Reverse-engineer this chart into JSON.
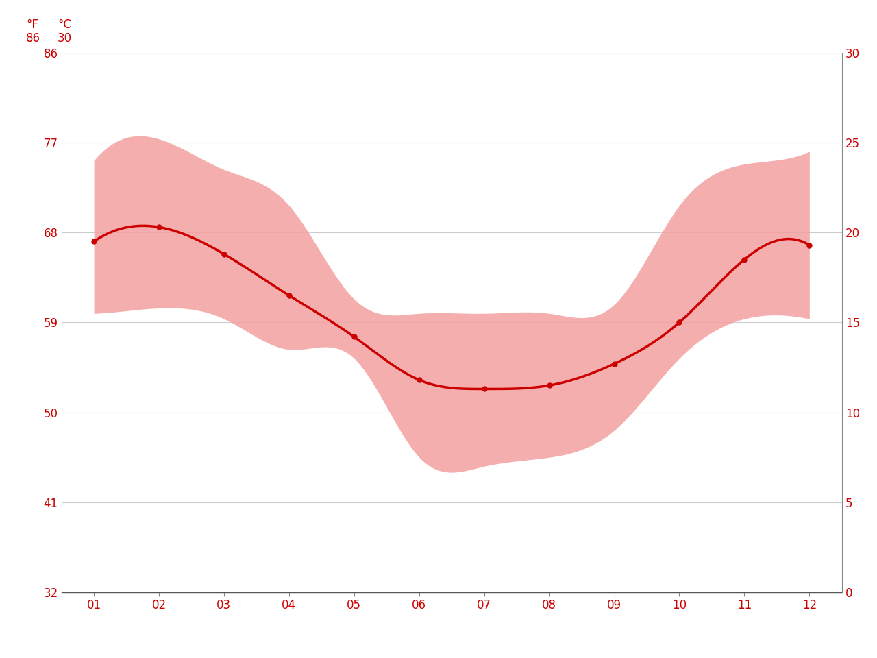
{
  "months": [
    1,
    2,
    3,
    4,
    5,
    6,
    7,
    8,
    9,
    10,
    11,
    12
  ],
  "month_labels": [
    "01",
    "02",
    "03",
    "04",
    "05",
    "06",
    "07",
    "08",
    "09",
    "10",
    "11",
    "12"
  ],
  "mean_temp_c": [
    19.5,
    20.3,
    18.8,
    16.5,
    14.2,
    11.8,
    11.3,
    11.5,
    12.7,
    15.0,
    18.5,
    19.3
  ],
  "max_temp_c": [
    24.0,
    25.2,
    23.5,
    21.5,
    16.3,
    15.5,
    15.5,
    15.5,
    16.0,
    21.5,
    23.8,
    24.5
  ],
  "min_temp_c": [
    15.5,
    15.8,
    15.2,
    13.5,
    13.0,
    7.5,
    7.0,
    7.5,
    9.0,
    13.0,
    15.2,
    15.2
  ],
  "ylim_c": [
    0,
    30
  ],
  "yticks_c": [
    0,
    5,
    10,
    15,
    20,
    25,
    30
  ],
  "yticks_f": [
    32,
    41,
    50,
    59,
    68,
    77,
    86
  ],
  "line_color": "#cc0000",
  "fill_color": "#f4a0a0",
  "fill_alpha": 0.85,
  "background_color": "#ffffff",
  "grid_color": "#cccccc",
  "tick_color": "#cc0000",
  "marker": "o",
  "marker_size": 5,
  "line_width": 2.5,
  "label_fontsize": 12,
  "header_fontsize": 12
}
